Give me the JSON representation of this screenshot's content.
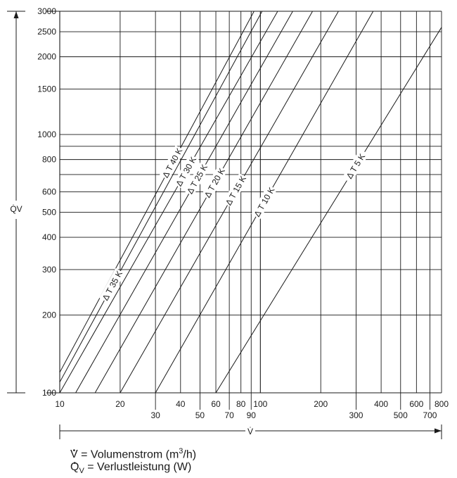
{
  "chart_data": {
    "type": "line",
    "x_scale": "log",
    "y_scale": "log",
    "xlim": [
      10,
      800
    ],
    "ylim": [
      100,
      3000
    ],
    "grid": true,
    "x_symbol": "V̇",
    "y_symbol": "Q̇V",
    "x_ticks_top_row": [
      "10",
      "20",
      "40",
      "60",
      "80",
      "100",
      "200",
      "400",
      "600",
      "800"
    ],
    "x_ticks_bottom_row": [
      "30",
      "50",
      "70",
      "90",
      "300",
      "500",
      "700"
    ],
    "y_ticks": [
      "100",
      "200",
      "300",
      "400",
      "500",
      "600",
      "800",
      "1000",
      "1500",
      "2000",
      "2500",
      "3000"
    ],
    "series": [
      {
        "name": "Δ T 40 K",
        "x": [
          10,
          93
        ],
        "y": [
          120,
          3000
        ]
      },
      {
        "name": "Δ T 35 K",
        "x": [
          10,
          102
        ],
        "y": [
          110,
          3000
        ]
      },
      {
        "name": "Δ T 30 K",
        "x": [
          10,
          122
        ],
        "y": [
          100,
          3000
        ]
      },
      {
        "name": "Δ T 25 K",
        "x": [
          12,
          145
        ],
        "y": [
          100,
          3000
        ]
      },
      {
        "name": "Δ T 20 K",
        "x": [
          15,
          182
        ],
        "y": [
          100,
          3000
        ]
      },
      {
        "name": "Δ T 15 K",
        "x": [
          20,
          245
        ],
        "y": [
          100,
          3000
        ]
      },
      {
        "name": "Δ T 10 K",
        "x": [
          30,
          365
        ],
        "y": [
          100,
          3000
        ]
      },
      {
        "name": "Δ T 5 K",
        "x": [
          60,
          800
        ],
        "y": [
          100,
          2600
        ]
      }
    ]
  },
  "legend": {
    "v_symbol": "V",
    "v_text": " = Volumenstrom (m",
    "v_sup": "3",
    "v_unit": "/h)",
    "q_symbol": "Q",
    "q_sub": "V",
    "q_text": " = Verlustleistung (W)"
  }
}
